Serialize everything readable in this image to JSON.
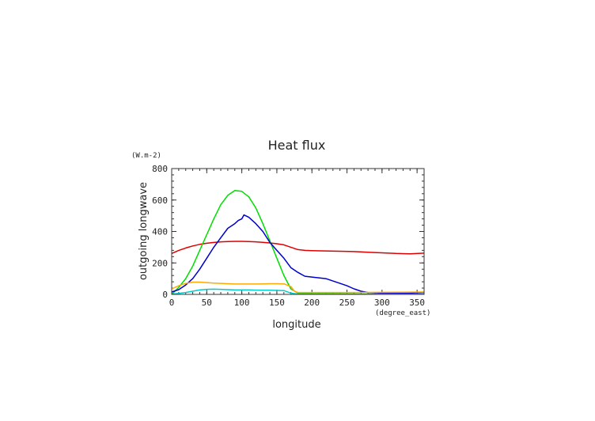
{
  "chart_data": {
    "type": "line",
    "title": "Heat flux",
    "xlabel": "longitude",
    "ylabel": "outgoing longwave",
    "x_unit": "(degree_east)",
    "y_unit": "(W.m-2)",
    "xlim": [
      0,
      360
    ],
    "ylim": [
      0,
      800
    ],
    "x_ticks": [
      0,
      50,
      100,
      150,
      200,
      250,
      300,
      350
    ],
    "y_ticks": [
      0,
      200,
      400,
      600,
      800
    ],
    "grid": false,
    "series": [
      {
        "color": "#dd0000",
        "points": [
          [
            0,
            260
          ],
          [
            10,
            280
          ],
          [
            20,
            295
          ],
          [
            30,
            308
          ],
          [
            40,
            318
          ],
          [
            50,
            325
          ],
          [
            60,
            330
          ],
          [
            70,
            334
          ],
          [
            80,
            336
          ],
          [
            90,
            337
          ],
          [
            100,
            337
          ],
          [
            110,
            336
          ],
          [
            120,
            334
          ],
          [
            130,
            331
          ],
          [
            140,
            327
          ],
          [
            150,
            322
          ],
          [
            160,
            315
          ],
          [
            170,
            300
          ],
          [
            180,
            285
          ],
          [
            190,
            280
          ],
          [
            200,
            278
          ],
          [
            220,
            276
          ],
          [
            240,
            274
          ],
          [
            260,
            272
          ],
          [
            280,
            268
          ],
          [
            300,
            264
          ],
          [
            320,
            260
          ],
          [
            340,
            258
          ],
          [
            360,
            262
          ]
        ]
      },
      {
        "color": "#00dd00",
        "points": [
          [
            0,
            0
          ],
          [
            10,
            45
          ],
          [
            20,
            100
          ],
          [
            30,
            180
          ],
          [
            40,
            280
          ],
          [
            50,
            380
          ],
          [
            60,
            480
          ],
          [
            70,
            570
          ],
          [
            80,
            630
          ],
          [
            90,
            660
          ],
          [
            100,
            655
          ],
          [
            110,
            620
          ],
          [
            120,
            550
          ],
          [
            130,
            450
          ],
          [
            140,
            340
          ],
          [
            150,
            230
          ],
          [
            160,
            120
          ],
          [
            170,
            35
          ],
          [
            180,
            8
          ],
          [
            200,
            5
          ],
          [
            250,
            3
          ],
          [
            300,
            2
          ],
          [
            360,
            2
          ]
        ]
      },
      {
        "color": "#0000cc",
        "points": [
          [
            0,
            15
          ],
          [
            10,
            30
          ],
          [
            20,
            60
          ],
          [
            30,
            100
          ],
          [
            40,
            160
          ],
          [
            50,
            230
          ],
          [
            60,
            300
          ],
          [
            70,
            360
          ],
          [
            80,
            420
          ],
          [
            90,
            450
          ],
          [
            95,
            470
          ],
          [
            100,
            480
          ],
          [
            103,
            505
          ],
          [
            110,
            490
          ],
          [
            120,
            450
          ],
          [
            130,
            400
          ],
          [
            140,
            330
          ],
          [
            150,
            280
          ],
          [
            160,
            230
          ],
          [
            170,
            170
          ],
          [
            180,
            140
          ],
          [
            190,
            115
          ],
          [
            200,
            110
          ],
          [
            210,
            105
          ],
          [
            220,
            100
          ],
          [
            230,
            85
          ],
          [
            240,
            70
          ],
          [
            250,
            55
          ],
          [
            260,
            35
          ],
          [
            270,
            20
          ],
          [
            280,
            12
          ],
          [
            300,
            8
          ],
          [
            320,
            6
          ],
          [
            340,
            8
          ],
          [
            360,
            12
          ]
        ]
      },
      {
        "color": "#ffaa00",
        "points": [
          [
            0,
            35
          ],
          [
            10,
            55
          ],
          [
            20,
            70
          ],
          [
            30,
            78
          ],
          [
            40,
            78
          ],
          [
            50,
            75
          ],
          [
            60,
            72
          ],
          [
            70,
            70
          ],
          [
            80,
            68
          ],
          [
            90,
            66
          ],
          [
            100,
            66
          ],
          [
            110,
            66
          ],
          [
            120,
            66
          ],
          [
            130,
            67
          ],
          [
            140,
            68
          ],
          [
            150,
            68
          ],
          [
            160,
            67
          ],
          [
            170,
            50
          ],
          [
            175,
            20
          ],
          [
            180,
            12
          ],
          [
            200,
            12
          ],
          [
            250,
            12
          ],
          [
            300,
            13
          ],
          [
            360,
            15
          ]
        ]
      },
      {
        "color": "#00cccc",
        "points": [
          [
            0,
            2
          ],
          [
            10,
            6
          ],
          [
            20,
            12
          ],
          [
            30,
            20
          ],
          [
            40,
            28
          ],
          [
            50,
            32
          ],
          [
            60,
            33
          ],
          [
            70,
            32
          ],
          [
            80,
            30
          ],
          [
            90,
            28
          ],
          [
            100,
            28
          ],
          [
            110,
            28
          ],
          [
            120,
            27
          ],
          [
            130,
            26
          ],
          [
            140,
            26
          ],
          [
            150,
            25
          ],
          [
            160,
            24
          ],
          [
            170,
            8
          ],
          [
            180,
            2
          ],
          [
            200,
            1
          ],
          [
            250,
            1
          ],
          [
            300,
            1
          ],
          [
            360,
            1
          ]
        ]
      }
    ]
  }
}
